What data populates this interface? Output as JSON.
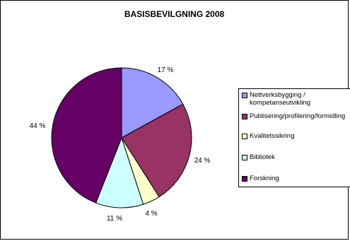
{
  "chart_data": {
    "type": "pie",
    "title": "BASISBEVILGNING 2008",
    "slices": [
      {
        "label": "Nettverksbygging /\nkompetanseutvikling",
        "value": 17,
        "display": "17 %",
        "color": "#9999ff"
      },
      {
        "label": "Publisering/profilering/formidling",
        "value": 24,
        "display": "24 %",
        "color": "#993366"
      },
      {
        "label": "Kvalitetssikring",
        "value": 4,
        "display": "4 %",
        "color": "#ffffcc"
      },
      {
        "label": "Bibliotek",
        "value": 11,
        "display": "11 %",
        "color": "#ccffff"
      },
      {
        "label": "Forskning",
        "value": 44,
        "display": "44 %",
        "color": "#660066"
      }
    ],
    "start_angle": "12 o'clock",
    "direction": "clockwise",
    "legend_position": "right"
  }
}
